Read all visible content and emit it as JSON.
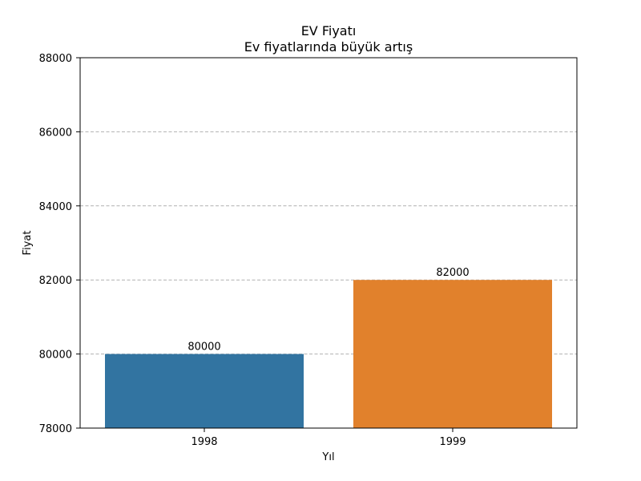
{
  "chart_data": {
    "type": "bar",
    "title": "EV Fiyatı",
    "subtitle": "Ev fiyatlarında büyük artış",
    "xlabel": "Yıl",
    "ylabel": "Fiyat",
    "categories": [
      "1998",
      "1999"
    ],
    "values": [
      80000,
      82000
    ],
    "data_labels": [
      "80000",
      "82000"
    ],
    "colors": [
      "#3274a1",
      "#e1812c"
    ],
    "ylim": [
      78000,
      88000
    ],
    "yticks": [
      78000,
      80000,
      82000,
      84000,
      86000,
      88000
    ],
    "ytick_labels": [
      "78000",
      "80000",
      "82000",
      "84000",
      "86000",
      "88000"
    ],
    "grid": "y-dashed",
    "legend": "none"
  }
}
